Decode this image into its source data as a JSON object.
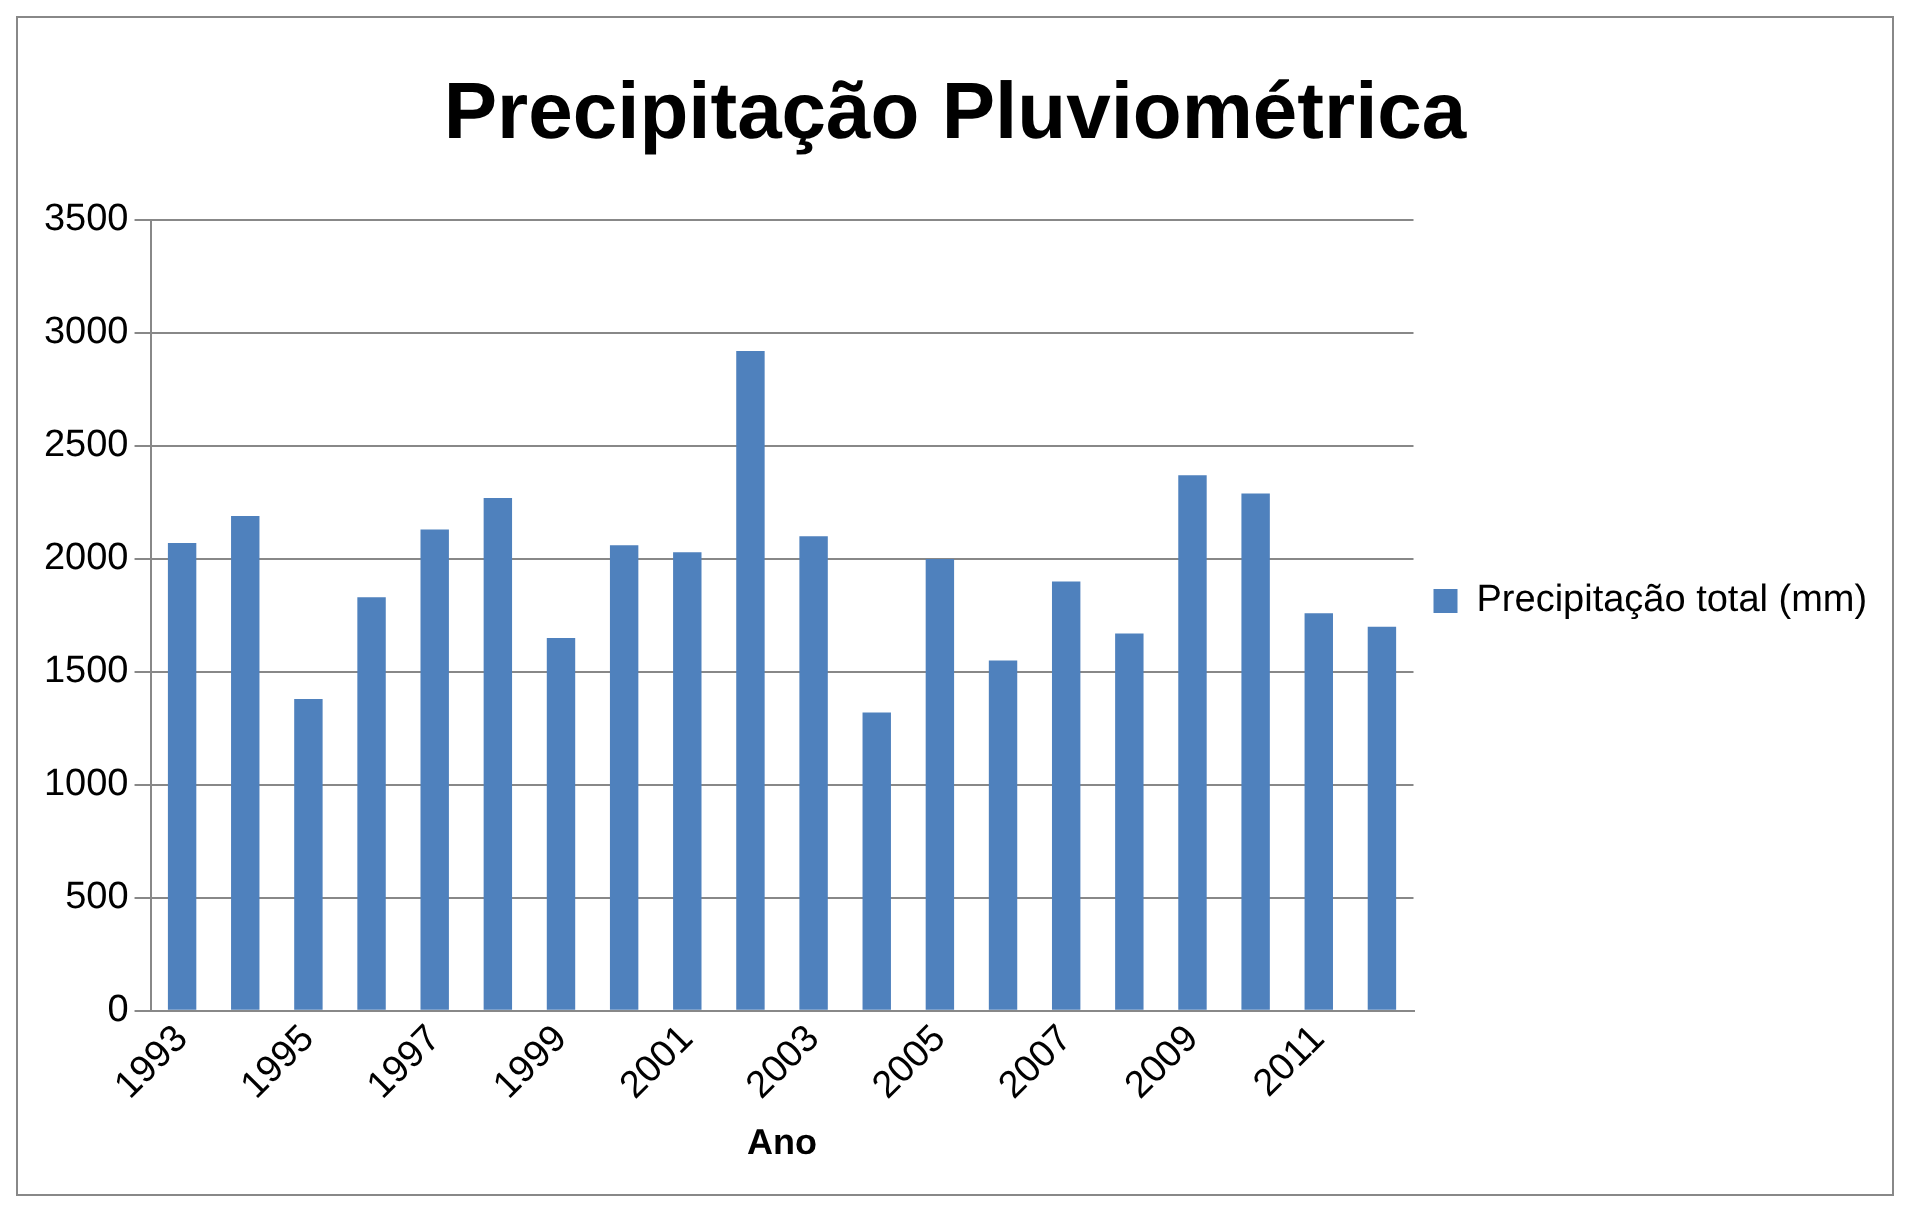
{
  "chart_data": {
    "type": "bar",
    "title": "Precipitação Pluviométrica",
    "xlabel": "Ano",
    "categories": [
      "1993",
      null,
      "1995",
      null,
      "1997",
      null,
      "1999",
      null,
      "2001",
      null,
      "2003",
      null,
      "2005",
      null,
      "2007",
      null,
      "2009",
      null,
      "2011",
      null
    ],
    "series": [
      {
        "name": "Precipitação total (mm)",
        "color": "#4f81bd",
        "values": [
          2070,
          2190,
          1380,
          1830,
          2130,
          2270,
          1650,
          2060,
          2030,
          2920,
          2100,
          1320,
          2000,
          1550,
          1900,
          1670,
          2370,
          2290,
          1760,
          1700
        ]
      }
    ],
    "ylim": [
      0,
      3500
    ],
    "yticks": [
      0,
      500,
      1000,
      1500,
      2000,
      2500,
      3000,
      3500
    ],
    "grid": "y",
    "legend": "right"
  }
}
